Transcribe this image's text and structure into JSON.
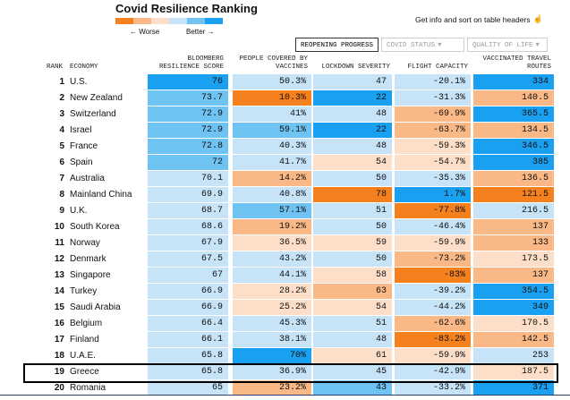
{
  "title": "Covid Resilience Ranking",
  "legend": {
    "worse_label": "← Worse",
    "better_label": "Better →",
    "colors": [
      "#f5801e",
      "#fab886",
      "#fddfc9",
      "#c6e3f8",
      "#6ec3f3",
      "#1aa0f0"
    ]
  },
  "hint": {
    "text": "Get info and sort on table headers",
    "icon": "hand-pointer-icon"
  },
  "tabs": [
    {
      "label": "REOPENING PROGRESS",
      "active": true
    },
    {
      "label": "COVID STATUS",
      "active": false
    },
    {
      "label": "QUALITY OF LIFE",
      "active": false
    }
  ],
  "headers": {
    "rank": "RANK",
    "economy": "ECONOMY",
    "score": "BLOOMBERG RESILIENCE SCORE",
    "vaccines": "PEOPLE COVERED BY VACCINES",
    "lockdown": "LOCKDOWN SEVERITY",
    "flight": "FLIGHT CAPACITY",
    "travel": "VACCINATED TRAVEL ROUTES"
  },
  "colors": {
    "dark_orange": "#f5801e",
    "orange": "#fab886",
    "light_orange": "#fddfc9",
    "light_blue": "#c6e3f8",
    "blue": "#6ec3f3",
    "dark_blue": "#1aa0f0"
  },
  "rows": [
    {
      "rank": "1",
      "economy": "U.S.",
      "score": "76",
      "vaccines": "50.3%",
      "lockdown": "47",
      "flight": "-20.1%",
      "travel": "334",
      "c": [
        "#1aa0f0",
        "#c6e3f8",
        "#c6e3f8",
        "#c6e3f8",
        "#1aa0f0"
      ]
    },
    {
      "rank": "2",
      "economy": "New Zealand",
      "score": "73.7",
      "vaccines": "10.3%",
      "lockdown": "22",
      "flight": "-31.3%",
      "travel": "140.5",
      "c": [
        "#6ec3f3",
        "#f5801e",
        "#1aa0f0",
        "#c6e3f8",
        "#fab886"
      ]
    },
    {
      "rank": "3",
      "economy": "Switzerland",
      "score": "72.9",
      "vaccines": "41%",
      "lockdown": "48",
      "flight": "-69.9%",
      "travel": "365.5",
      "c": [
        "#6ec3f3",
        "#c6e3f8",
        "#c6e3f8",
        "#fab886",
        "#1aa0f0"
      ]
    },
    {
      "rank": "4",
      "economy": "Israel",
      "score": "72.9",
      "vaccines": "59.1%",
      "lockdown": "22",
      "flight": "-63.7%",
      "travel": "134.5",
      "c": [
        "#6ec3f3",
        "#6ec3f3",
        "#1aa0f0",
        "#fab886",
        "#fab886"
      ]
    },
    {
      "rank": "5",
      "economy": "France",
      "score": "72.8",
      "vaccines": "40.3%",
      "lockdown": "48",
      "flight": "-59.3%",
      "travel": "346.5",
      "c": [
        "#6ec3f3",
        "#c6e3f8",
        "#c6e3f8",
        "#fddfc9",
        "#1aa0f0"
      ]
    },
    {
      "rank": "6",
      "economy": "Spain",
      "score": "72",
      "vaccines": "41.7%",
      "lockdown": "54",
      "flight": "-54.7%",
      "travel": "385",
      "c": [
        "#6ec3f3",
        "#c6e3f8",
        "#fddfc9",
        "#fddfc9",
        "#1aa0f0"
      ]
    },
    {
      "rank": "7",
      "economy": "Australia",
      "score": "70.1",
      "vaccines": "14.2%",
      "lockdown": "50",
      "flight": "-35.3%",
      "travel": "136.5",
      "c": [
        "#c6e3f8",
        "#fab886",
        "#c6e3f8",
        "#c6e3f8",
        "#fab886"
      ]
    },
    {
      "rank": "8",
      "economy": "Mainland China",
      "score": "69.9",
      "vaccines": "40.8%",
      "lockdown": "78",
      "flight": "1.7%",
      "travel": "121.5",
      "c": [
        "#c6e3f8",
        "#c6e3f8",
        "#f5801e",
        "#1aa0f0",
        "#f5801e"
      ]
    },
    {
      "rank": "9",
      "economy": "U.K.",
      "score": "68.7",
      "vaccines": "57.1%",
      "lockdown": "51",
      "flight": "-77.8%",
      "travel": "216.5",
      "c": [
        "#c6e3f8",
        "#6ec3f3",
        "#c6e3f8",
        "#f5801e",
        "#c6e3f8"
      ]
    },
    {
      "rank": "10",
      "economy": "South Korea",
      "score": "68.6",
      "vaccines": "19.2%",
      "lockdown": "50",
      "flight": "-46.4%",
      "travel": "137",
      "c": [
        "#c6e3f8",
        "#fab886",
        "#c6e3f8",
        "#c6e3f8",
        "#fab886"
      ]
    },
    {
      "rank": "11",
      "economy": "Norway",
      "score": "67.9",
      "vaccines": "36.5%",
      "lockdown": "59",
      "flight": "-59.9%",
      "travel": "133",
      "c": [
        "#c6e3f8",
        "#fddfc9",
        "#fddfc9",
        "#fddfc9",
        "#fab886"
      ]
    },
    {
      "rank": "12",
      "economy": "Denmark",
      "score": "67.5",
      "vaccines": "43.2%",
      "lockdown": "50",
      "flight": "-73.2%",
      "travel": "173.5",
      "c": [
        "#c6e3f8",
        "#c6e3f8",
        "#c6e3f8",
        "#fab886",
        "#fddfc9"
      ]
    },
    {
      "rank": "13",
      "economy": "Singapore",
      "score": "67",
      "vaccines": "44.1%",
      "lockdown": "58",
      "flight": "-83%",
      "travel": "137",
      "c": [
        "#c6e3f8",
        "#c6e3f8",
        "#fddfc9",
        "#f5801e",
        "#fab886"
      ]
    },
    {
      "rank": "14",
      "economy": "Turkey",
      "score": "66.9",
      "vaccines": "28.2%",
      "lockdown": "63",
      "flight": "-39.2%",
      "travel": "354.5",
      "c": [
        "#c6e3f8",
        "#fddfc9",
        "#fab886",
        "#c6e3f8",
        "#1aa0f0"
      ]
    },
    {
      "rank": "15",
      "economy": "Saudi Arabia",
      "score": "66.9",
      "vaccines": "25.2%",
      "lockdown": "54",
      "flight": "-44.2%",
      "travel": "349",
      "c": [
        "#c6e3f8",
        "#fddfc9",
        "#fddfc9",
        "#c6e3f8",
        "#1aa0f0"
      ]
    },
    {
      "rank": "16",
      "economy": "Belgium",
      "score": "66.4",
      "vaccines": "45.3%",
      "lockdown": "51",
      "flight": "-62.6%",
      "travel": "170.5",
      "c": [
        "#c6e3f8",
        "#c6e3f8",
        "#c6e3f8",
        "#fab886",
        "#fddfc9"
      ]
    },
    {
      "rank": "17",
      "economy": "Finland",
      "score": "66.1",
      "vaccines": "38.1%",
      "lockdown": "48",
      "flight": "-83.2%",
      "travel": "142.5",
      "c": [
        "#c6e3f8",
        "#c6e3f8",
        "#c6e3f8",
        "#f5801e",
        "#fab886"
      ]
    },
    {
      "rank": "18",
      "economy": "U.A.E.",
      "score": "65.8",
      "vaccines": "70%",
      "lockdown": "61",
      "flight": "-59.9%",
      "travel": "253",
      "c": [
        "#c6e3f8",
        "#1aa0f0",
        "#fddfc9",
        "#fddfc9",
        "#c6e3f8"
      ]
    },
    {
      "rank": "19",
      "economy": "Greece",
      "score": "65.8",
      "vaccines": "36.9%",
      "lockdown": "45",
      "flight": "-42.9%",
      "travel": "187.5",
      "c": [
        "#c6e3f8",
        "#c6e3f8",
        "#c6e3f8",
        "#c6e3f8",
        "#fddfc9"
      ]
    },
    {
      "rank": "20",
      "economy": "Romania",
      "score": "65",
      "vaccines": "23.2%",
      "lockdown": "43",
      "flight": "-33.2%",
      "travel": "371",
      "c": [
        "#c6e3f8",
        "#fab886",
        "#6ec3f3",
        "#c6e3f8",
        "#1aa0f0"
      ]
    }
  ]
}
